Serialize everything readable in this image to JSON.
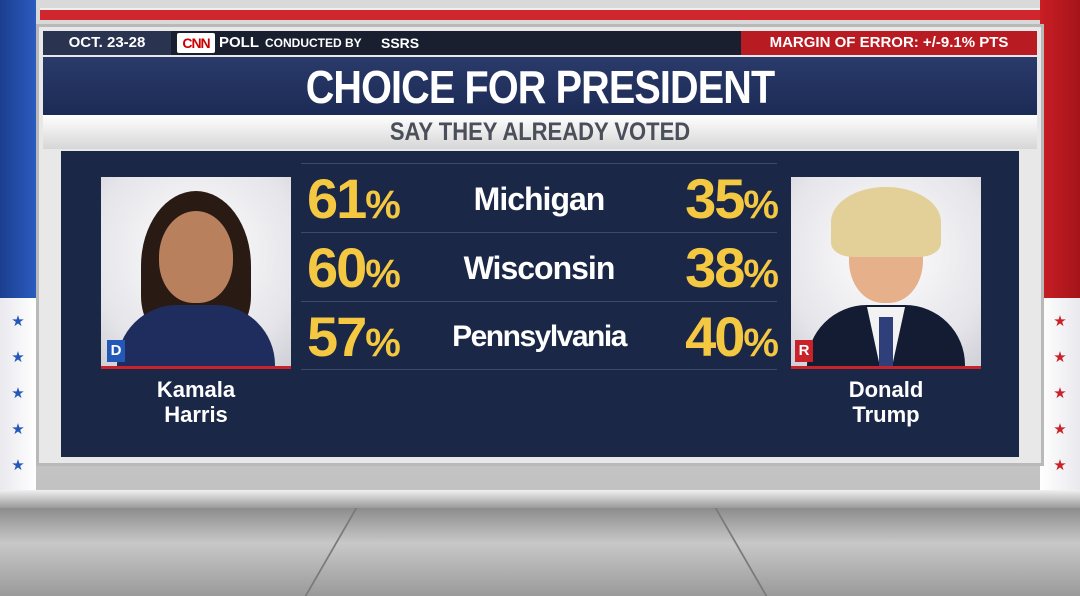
{
  "header": {
    "date_range": "OCT. 23-28",
    "network_logo": "CNN",
    "poll_label": "POLL",
    "conducted_by_label": "CONDUCTED BY",
    "pollster": "SSRS",
    "margin_of_error": "MARGIN OF ERROR: +/-9.1% PTS"
  },
  "title": "CHOICE FOR PRESIDENT",
  "subtitle": "SAY THEY ALREADY VOTED",
  "candidates": {
    "left": {
      "first": "Kamala",
      "last": "Harris",
      "party": "D"
    },
    "right": {
      "first": "Donald",
      "last": "Trump",
      "party": "R"
    }
  },
  "results": [
    {
      "state": "Michigan",
      "harris": "61",
      "trump": "35"
    },
    {
      "state": "Wisconsin",
      "harris": "60",
      "trump": "38"
    },
    {
      "state": "Pennsylvania",
      "harris": "57",
      "trump": "40"
    }
  ],
  "percent_sign": "%",
  "colors": {
    "democrat_blue": "#2458b8",
    "republican_red": "#c8232a",
    "percent_yellow": "#f5c842",
    "panel_navy": "#1b2747"
  }
}
